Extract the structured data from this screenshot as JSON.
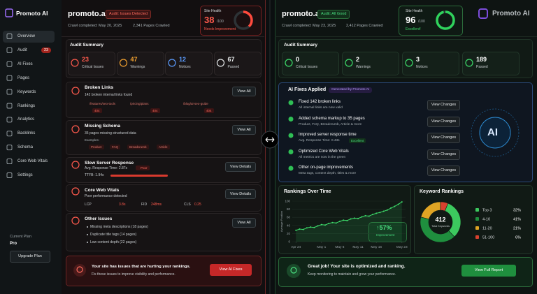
{
  "sidebar": {
    "brand": "Promoto AI",
    "nav": [
      {
        "label": "Overview"
      },
      {
        "label": "Audit",
        "badge": 23
      },
      {
        "label": "AI Fixes"
      },
      {
        "label": "Pages"
      },
      {
        "label": "Keywords"
      },
      {
        "label": "Rankings"
      },
      {
        "label": "Analytics"
      },
      {
        "label": "Backlinks"
      },
      {
        "label": "Schema"
      },
      {
        "label": "Core Web Vitals"
      },
      {
        "label": "Settings"
      }
    ],
    "plan_label": "Current Plan",
    "plan": "Pro",
    "upgrade_button": "Upgrade Plan"
  },
  "before": {
    "site": "promoto.ai",
    "status": "Audit: Issues Detected",
    "crawl": "Crawl completed: May 20, 2025",
    "pages": "2,341 Pages Crawled",
    "health": {
      "label": "Site Health",
      "score": 38,
      "max": "/100",
      "range": [
        0,
        100
      ],
      "status": "Needs Improvement"
    },
    "summary": {
      "title": "Audit Summary",
      "stats": [
        {
          "value": 23,
          "label": "Critical Issues"
        },
        {
          "value": 47,
          "label": "Warnings"
        },
        {
          "value": 12,
          "label": "Notices"
        },
        {
          "value": 67,
          "label": "Passed"
        }
      ]
    },
    "issues": {
      "broken_links": {
        "title": "Broken Links",
        "detail": "142 broken internal links found",
        "button": "View All",
        "links": [
          {
            "url": "/features/seo-tools",
            "code": 404
          },
          {
            "url": "/pricing/plans",
            "code": 404
          },
          {
            "url": "/blog/ai-seo-guide",
            "code": 404
          }
        ]
      },
      "missing_schema": {
        "title": "Missing Schema",
        "detail": "35 pages missing structured data",
        "examples_label": "Examples:",
        "tags": [
          "Product",
          "FAQ",
          "Breadcrumb",
          "Article"
        ],
        "button": "View All"
      },
      "slow_server": {
        "title": "Slow Server Response",
        "detail": "Avg. Response Time: 2.87s",
        "badge": "Poor",
        "ttfb": "TTFB: 1.94s",
        "button": "View Details"
      },
      "core_web_vitals": {
        "title": "Core Web Vitals",
        "detail": "Poor performance detected",
        "metrics": [
          {
            "name": "LCP",
            "value": "3.8s"
          },
          {
            "name": "FID",
            "value": "248ms"
          },
          {
            "name": "CLS",
            "value": 0.25
          }
        ],
        "button": "View Details"
      },
      "other": {
        "title": "Other Issues",
        "items": [
          "Missing meta descriptions (18 pages)",
          "Duplicate title tags (14 pages)",
          "Low content depth (22 pages)"
        ],
        "button": "View All"
      }
    },
    "banner": {
      "title": "Your site has issues that are hurting your rankings.",
      "text": "Fix these issues to improve visibility and performance.",
      "button": "View AI Fixes"
    }
  },
  "after": {
    "site": "promoto.ai",
    "status": "Audit: All Good",
    "crawl": "Crawl completed: May 23, 2025",
    "pages": "2,412 Pages Crawled",
    "brand": "Promoto AI",
    "health": {
      "label": "Site Health",
      "score": 96,
      "max": "/100",
      "range": [
        0,
        100
      ],
      "status": "Excellent!"
    },
    "summary": {
      "title": "Audit Summary",
      "stats": [
        {
          "value": 0,
          "label": "Critical Issues"
        },
        {
          "value": 2,
          "label": "Warnings"
        },
        {
          "value": 3,
          "label": "Notices"
        },
        {
          "value": 189,
          "label": "Passed"
        }
      ]
    },
    "fixes": {
      "title": "AI Fixes Applied",
      "badge": "Generated by Promoto AI",
      "illustration": "AI",
      "items": [
        {
          "title": "Fixed 142 broken links",
          "detail": "All internal links are now valid",
          "button": "View Changes"
        },
        {
          "title": "Added schema markup to 35 pages",
          "detail": "Product, FAQ, Breadcrumb, Article & more",
          "button": "View Changes"
        },
        {
          "title": "Improved server response time",
          "detail": "Avg. Response Time: 0.43s",
          "badge": "Excellent",
          "button": "View Changes"
        },
        {
          "title": "Optimized Core Web Vitals",
          "detail": "All metrics are now in the green",
          "button": "View Changes"
        },
        {
          "title": "Other on-page improvements",
          "detail": "Meta tags, content depth, titles & more",
          "button": "View Changes"
        }
      ]
    },
    "rankings": {
      "type": "line",
      "title": "Rankings Over Time",
      "y_label": "Average Position",
      "color": "#3ddc6a",
      "x": [
        0,
        1,
        2,
        3,
        4,
        5,
        6,
        7,
        8,
        9,
        10,
        11,
        12,
        13,
        14,
        15,
        16,
        17,
        18,
        19,
        20,
        21,
        22,
        23,
        24,
        25,
        26,
        27,
        28,
        29
      ],
      "values": [
        28,
        31,
        30,
        34,
        36,
        35,
        39,
        42,
        41,
        45,
        47,
        46,
        50,
        53,
        52,
        56,
        58,
        57,
        61,
        64,
        63,
        67,
        70,
        72,
        75,
        78,
        83,
        87,
        92,
        98
      ],
      "xlim": [
        -1,
        30
      ],
      "ylim": [
        0,
        100
      ],
      "yticks": [
        0,
        20,
        40,
        60,
        80,
        100
      ],
      "xticks": [
        {
          "value": 0,
          "label": "Apr 24"
        },
        {
          "value": 7,
          "label": "May 1"
        },
        {
          "value": 12,
          "label": "May 6"
        },
        {
          "value": 17,
          "label": "May 11"
        },
        {
          "value": 22,
          "label": "May 16"
        },
        {
          "value": 29,
          "label": "May 23"
        }
      ],
      "improvement": "↑57%",
      "improvement_label": "Improvement"
    },
    "keywords": {
      "type": "pie",
      "title": "Keyword Rankings",
      "total": 412,
      "total_label": "Total Keywords",
      "categories": [
        "Top 3",
        "4-10",
        "11-20",
        "51-100"
      ],
      "values": [
        32,
        41,
        21,
        6
      ],
      "value_labels": [
        "32%",
        "41%",
        "21%",
        "6%"
      ],
      "colors": [
        "#3cc95e",
        "#1f8f3e",
        "#e0a424",
        "#d9412f"
      ]
    },
    "banner": {
      "title": "Great job! Your site is optimized and ranking.",
      "text": "Keep monitoring to maintain and grow your performance.",
      "button": "View Full Report"
    }
  }
}
